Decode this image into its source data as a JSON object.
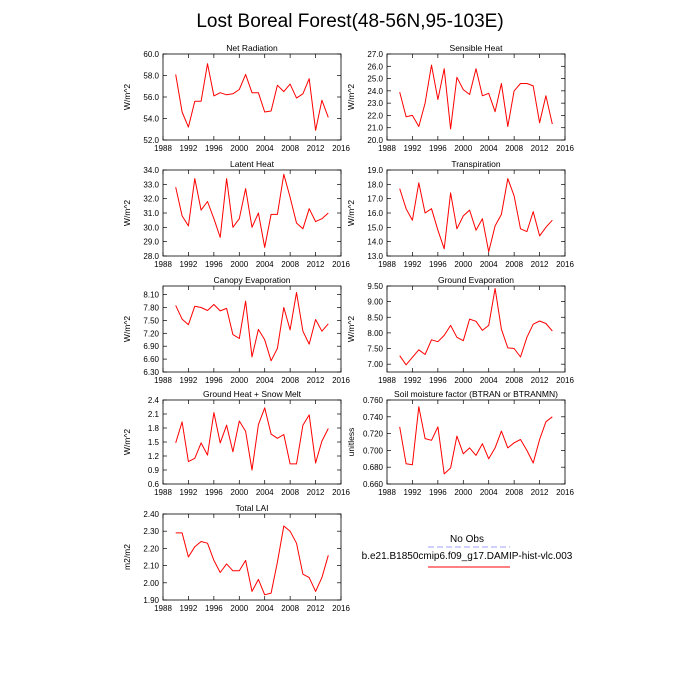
{
  "title": "Lost Boreal Forest(48-56N,95-103E)",
  "colors": {
    "model_line": "#ff0000",
    "obs_line": "#a0a0ff",
    "frame": "#000000"
  },
  "legend": {
    "obs_label": "No Obs",
    "model_label": "b.e21.B1850cmip6.f09_g17.DAMIP-hist-vlc.003"
  },
  "chart_data": [
    {
      "type": "line",
      "title": "Net Radiation",
      "ylabel": "W/m^2",
      "xlim": [
        1988,
        2016
      ],
      "ylim": [
        52,
        60
      ],
      "xticks": [
        1988,
        1992,
        1996,
        2000,
        2004,
        2008,
        2012,
        2016
      ],
      "yticks": [
        "52.0",
        "54.0",
        "56.0",
        "58.0",
        "60.0"
      ],
      "x": [
        1990,
        1991,
        1992,
        1993,
        1994,
        1995,
        1996,
        1997,
        1998,
        1999,
        2000,
        2001,
        2002,
        2003,
        2004,
        2005,
        2006,
        2007,
        2008,
        2009,
        2010,
        2011,
        2012,
        2013,
        2014
      ],
      "series": [
        {
          "values": [
            58.1,
            54.6,
            53.2,
            55.6,
            55.6,
            59.1,
            56.1,
            56.4,
            56.2,
            56.3,
            56.7,
            58.1,
            56.4,
            56.4,
            54.6,
            54.7,
            57.1,
            56.5,
            57.2,
            55.9,
            56.3,
            57.7,
            52.9,
            55.7,
            54.1
          ]
        }
      ]
    },
    {
      "type": "line",
      "title": "Sensible Heat",
      "ylabel": "W/m^2",
      "xlim": [
        1988,
        2016
      ],
      "ylim": [
        20,
        27
      ],
      "xticks": [
        1988,
        1992,
        1996,
        2000,
        2004,
        2008,
        2012,
        2016
      ],
      "yticks": [
        "20.0",
        "21.0",
        "22.0",
        "23.0",
        "24.0",
        "25.0",
        "26.0",
        "27.0"
      ],
      "x": [
        1990,
        1991,
        1992,
        1993,
        1994,
        1995,
        1996,
        1997,
        1998,
        1999,
        2000,
        2001,
        2002,
        2003,
        2004,
        2005,
        2006,
        2007,
        2008,
        2009,
        2010,
        2011,
        2012,
        2013,
        2014
      ],
      "series": [
        {
          "values": [
            23.9,
            21.9,
            22.0,
            21.1,
            23.0,
            26.1,
            23.3,
            25.8,
            20.9,
            25.1,
            24.1,
            23.7,
            25.8,
            23.6,
            23.8,
            22.3,
            24.6,
            21.1,
            24.0,
            24.6,
            24.6,
            24.4,
            21.4,
            23.6,
            21.3
          ]
        }
      ]
    },
    {
      "type": "line",
      "title": "Latent Heat",
      "ylabel": "W/m^2",
      "xlim": [
        1988,
        2016
      ],
      "ylim": [
        28,
        34
      ],
      "xticks": [
        1988,
        1992,
        1996,
        2000,
        2004,
        2008,
        2012,
        2016
      ],
      "yticks": [
        "28.0",
        "29.0",
        "30.0",
        "31.0",
        "32.0",
        "33.0",
        "34.0"
      ],
      "x": [
        1990,
        1991,
        1992,
        1993,
        1994,
        1995,
        1996,
        1997,
        1998,
        1999,
        2000,
        2001,
        2002,
        2003,
        2004,
        2005,
        2006,
        2007,
        2008,
        2009,
        2010,
        2011,
        2012,
        2013,
        2014
      ],
      "series": [
        {
          "values": [
            32.8,
            30.8,
            30.1,
            33.4,
            31.2,
            31.8,
            30.6,
            29.3,
            33.4,
            30.0,
            30.6,
            32.7,
            30.0,
            31.0,
            28.6,
            30.9,
            30.9,
            33.7,
            32.1,
            30.3,
            29.9,
            31.3,
            30.4,
            30.6,
            31.0
          ]
        }
      ]
    },
    {
      "type": "line",
      "title": "Transpiration",
      "ylabel": "W/m^2",
      "xlim": [
        1988,
        2016
      ],
      "ylim": [
        13,
        19
      ],
      "xticks": [
        1988,
        1992,
        1996,
        2000,
        2004,
        2008,
        2012,
        2016
      ],
      "yticks": [
        "13.0",
        "14.0",
        "15.0",
        "16.0",
        "17.0",
        "18.0",
        "19.0"
      ],
      "x": [
        1990,
        1991,
        1992,
        1993,
        1994,
        1995,
        1996,
        1997,
        1998,
        1999,
        2000,
        2001,
        2002,
        2003,
        2004,
        2005,
        2006,
        2007,
        2008,
        2009,
        2010,
        2011,
        2012,
        2013,
        2014
      ],
      "series": [
        {
          "values": [
            17.7,
            16.3,
            15.5,
            18.1,
            16.0,
            16.3,
            14.8,
            13.5,
            17.4,
            14.9,
            15.8,
            16.2,
            14.8,
            15.6,
            13.3,
            15.1,
            15.9,
            18.4,
            17.2,
            14.9,
            14.7,
            16.1,
            14.4,
            15.0,
            15.5
          ]
        }
      ]
    },
    {
      "type": "line",
      "title": "Canopy Evaporation",
      "ylabel": "W/m^2",
      "xlim": [
        1988,
        2016
      ],
      "ylim": [
        6.3,
        8.3
      ],
      "xticks": [
        1988,
        1992,
        1996,
        2000,
        2004,
        2008,
        2012,
        2016
      ],
      "yticks": [
        "6.30",
        "6.60",
        "6.90",
        "7.20",
        "7.50",
        "7.80",
        "8.10"
      ],
      "x": [
        1990,
        1991,
        1992,
        1993,
        1994,
        1995,
        1996,
        1997,
        1998,
        1999,
        2000,
        2001,
        2002,
        2003,
        2004,
        2005,
        2006,
        2007,
        2008,
        2009,
        2010,
        2011,
        2012,
        2013,
        2014
      ],
      "series": [
        {
          "values": [
            7.85,
            7.53,
            7.4,
            7.83,
            7.8,
            7.73,
            7.87,
            7.72,
            7.78,
            7.17,
            7.08,
            7.95,
            6.65,
            7.29,
            7.05,
            6.56,
            6.85,
            7.8,
            7.28,
            8.15,
            7.25,
            6.95,
            7.52,
            7.25,
            7.42
          ]
        }
      ]
    },
    {
      "type": "line",
      "title": "Ground Evaporation",
      "ylabel": "W/m^2",
      "xlim": [
        1988,
        2016
      ],
      "ylim": [
        6.75,
        9.5
      ],
      "xticks": [
        1988,
        1992,
        1996,
        2000,
        2004,
        2008,
        2012,
        2016
      ],
      "yticks": [
        "7.00",
        "7.50",
        "8.00",
        "8.50",
        "9.00",
        "9.50"
      ],
      "x": [
        1990,
        1991,
        1992,
        1993,
        1994,
        1995,
        1996,
        1997,
        1998,
        1999,
        2000,
        2001,
        2002,
        2003,
        2004,
        2005,
        2006,
        2007,
        2008,
        2009,
        2010,
        2011,
        2012,
        2013,
        2014
      ],
      "series": [
        {
          "values": [
            7.27,
            6.98,
            7.22,
            7.46,
            7.31,
            7.78,
            7.72,
            7.92,
            8.24,
            7.86,
            7.75,
            8.44,
            8.37,
            8.08,
            8.24,
            9.42,
            8.12,
            7.52,
            7.5,
            7.23,
            7.86,
            8.28,
            8.38,
            8.3,
            8.06
          ]
        }
      ]
    },
    {
      "type": "line",
      "title": "Ground Heat + Snow Melt",
      "ylabel": "W/m^2",
      "xlim": [
        1988,
        2016
      ],
      "ylim": [
        0.6,
        2.4
      ],
      "xticks": [
        1988,
        1992,
        1996,
        2000,
        2004,
        2008,
        2012,
        2016
      ],
      "yticks": [
        "0.6",
        "0.9",
        "1.2",
        "1.5",
        "1.8",
        "2.1",
        "2.4"
      ],
      "x": [
        1990,
        1991,
        1992,
        1993,
        1994,
        1995,
        1996,
        1997,
        1998,
        1999,
        2000,
        2001,
        2002,
        2003,
        2004,
        2005,
        2006,
        2007,
        2008,
        2009,
        2010,
        2011,
        2012,
        2013,
        2014
      ],
      "series": [
        {
          "values": [
            1.48,
            1.93,
            1.08,
            1.15,
            1.48,
            1.22,
            2.13,
            1.48,
            1.86,
            1.29,
            1.95,
            1.73,
            0.9,
            1.87,
            2.23,
            1.67,
            1.58,
            1.66,
            1.03,
            1.03,
            1.86,
            2.08,
            1.05,
            1.52,
            1.79
          ]
        }
      ]
    },
    {
      "type": "line",
      "title": "Soil moisture factor (BTRAN or BTRANMN)",
      "ylabel": "unitless",
      "xlim": [
        1988,
        2016
      ],
      "ylim": [
        0.66,
        0.76
      ],
      "xticks": [
        1988,
        1992,
        1996,
        2000,
        2004,
        2008,
        2012,
        2016
      ],
      "yticks": [
        "0.660",
        "0.680",
        "0.700",
        "0.720",
        "0.740",
        "0.760"
      ],
      "x": [
        1990,
        1991,
        1992,
        1993,
        1994,
        1995,
        1996,
        1997,
        1998,
        1999,
        2000,
        2001,
        2002,
        2003,
        2004,
        2005,
        2006,
        2007,
        2008,
        2009,
        2010,
        2011,
        2012,
        2013,
        2014
      ],
      "series": [
        {
          "values": [
            0.728,
            0.684,
            0.683,
            0.752,
            0.714,
            0.712,
            0.728,
            0.672,
            0.679,
            0.717,
            0.696,
            0.703,
            0.694,
            0.708,
            0.69,
            0.703,
            0.723,
            0.703,
            0.709,
            0.713,
            0.7,
            0.685,
            0.713,
            0.734,
            0.74
          ]
        }
      ]
    },
    {
      "type": "line",
      "title": "Total LAI",
      "ylabel": "m2/m2",
      "xlim": [
        1988,
        2016
      ],
      "ylim": [
        1.9,
        2.4
      ],
      "xticks": [
        1988,
        1992,
        1996,
        2000,
        2004,
        2008,
        2012,
        2016
      ],
      "yticks": [
        "1.90",
        "2.00",
        "2.10",
        "2.20",
        "2.30",
        "2.40"
      ],
      "x": [
        1990,
        1991,
        1992,
        1993,
        1994,
        1995,
        1996,
        1997,
        1998,
        1999,
        2000,
        2001,
        2002,
        2003,
        2004,
        2005,
        2006,
        2007,
        2008,
        2009,
        2010,
        2011,
        2012,
        2013,
        2014
      ],
      "series": [
        {
          "values": [
            2.29,
            2.29,
            2.15,
            2.21,
            2.24,
            2.23,
            2.13,
            2.06,
            2.11,
            2.07,
            2.07,
            2.13,
            1.95,
            2.02,
            1.93,
            1.94,
            2.12,
            2.33,
            2.3,
            2.23,
            2.05,
            2.03,
            1.95,
            2.03,
            2.16
          ]
        }
      ]
    }
  ]
}
